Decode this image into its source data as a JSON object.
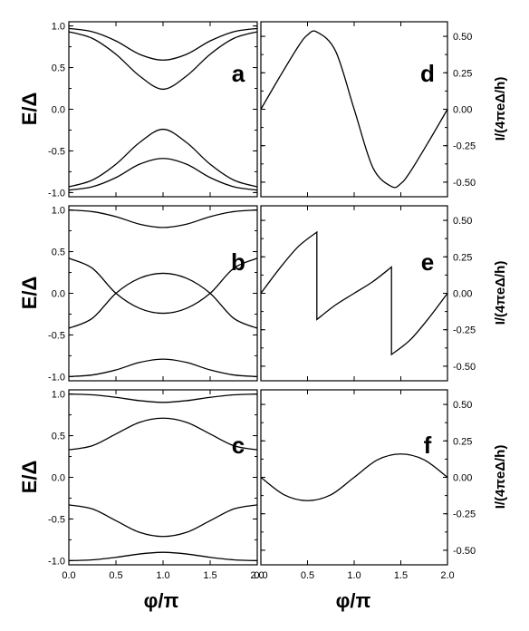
{
  "chart_data": [
    {
      "type": "line",
      "panel": "a",
      "ylabel": "E/Δ",
      "ylim": [
        -1.05,
        1.05
      ],
      "xlim": [
        0,
        2
      ],
      "series": [
        {
          "x": [
            0,
            0.25,
            0.5,
            0.75,
            1.0,
            1.25,
            1.5,
            1.75,
            2.0
          ],
          "values": [
            0.97,
            0.93,
            0.82,
            0.66,
            0.59,
            0.66,
            0.82,
            0.93,
            0.97
          ]
        },
        {
          "x": [
            0,
            0.25,
            0.5,
            0.75,
            1.0,
            1.25,
            1.5,
            1.75,
            2.0
          ],
          "values": [
            0.93,
            0.85,
            0.66,
            0.4,
            0.24,
            0.4,
            0.66,
            0.85,
            0.93
          ]
        },
        {
          "x": [
            0,
            0.25,
            0.5,
            0.75,
            1.0,
            1.25,
            1.5,
            1.75,
            2.0
          ],
          "values": [
            -0.93,
            -0.85,
            -0.66,
            -0.4,
            -0.24,
            -0.4,
            -0.66,
            -0.85,
            -0.93
          ]
        },
        {
          "x": [
            0,
            0.25,
            0.5,
            0.75,
            1.0,
            1.25,
            1.5,
            1.75,
            2.0
          ],
          "values": [
            -0.97,
            -0.93,
            -0.82,
            -0.66,
            -0.59,
            -0.66,
            -0.82,
            -0.93,
            -0.97
          ]
        }
      ]
    },
    {
      "type": "line",
      "panel": "b",
      "ylabel": "E/Δ",
      "ylim": [
        -1.05,
        1.05
      ],
      "xlim": [
        0,
        2
      ],
      "series": [
        {
          "x": [
            0,
            0.25,
            0.5,
            0.75,
            1.0,
            1.25,
            1.5,
            1.75,
            2.0
          ],
          "values": [
            1.0,
            0.98,
            0.92,
            0.83,
            0.79,
            0.83,
            0.92,
            0.98,
            1.0
          ]
        },
        {
          "x": [
            0,
            0.25,
            0.5,
            0.75,
            1.0,
            1.25,
            1.5,
            1.75,
            2.0
          ],
          "values": [
            0.42,
            0.3,
            0.0,
            -0.18,
            -0.24,
            -0.18,
            0.0,
            0.3,
            0.42
          ]
        },
        {
          "x": [
            0,
            0.25,
            0.5,
            0.75,
            1.0,
            1.25,
            1.5,
            1.75,
            2.0
          ],
          "values": [
            -0.42,
            -0.3,
            0.0,
            0.18,
            0.24,
            0.18,
            0.0,
            -0.3,
            -0.42
          ]
        },
        {
          "x": [
            0,
            0.25,
            0.5,
            0.75,
            1.0,
            1.25,
            1.5,
            1.75,
            2.0
          ],
          "values": [
            -1.0,
            -0.98,
            -0.92,
            -0.83,
            -0.79,
            -0.83,
            -0.92,
            -0.98,
            -1.0
          ]
        }
      ]
    },
    {
      "type": "line",
      "panel": "c",
      "ylabel": "E/Δ",
      "xlabel": "φ/π",
      "ylim": [
        -1.05,
        1.05
      ],
      "xlim": [
        0,
        2
      ],
      "series": [
        {
          "x": [
            0,
            0.25,
            0.5,
            0.75,
            1.0,
            1.25,
            1.5,
            1.75,
            2.0
          ],
          "values": [
            1.0,
            0.99,
            0.96,
            0.92,
            0.9,
            0.92,
            0.96,
            0.99,
            1.0
          ]
        },
        {
          "x": [
            0,
            0.25,
            0.5,
            0.75,
            1.0,
            1.25,
            1.5,
            1.75,
            2.0
          ],
          "values": [
            0.33,
            0.38,
            0.52,
            0.66,
            0.71,
            0.66,
            0.52,
            0.38,
            0.33
          ]
        },
        {
          "x": [
            0,
            0.25,
            0.5,
            0.75,
            1.0,
            1.25,
            1.5,
            1.75,
            2.0
          ],
          "values": [
            -0.33,
            -0.38,
            -0.52,
            -0.66,
            -0.71,
            -0.66,
            -0.52,
            -0.38,
            -0.33
          ]
        },
        {
          "x": [
            0,
            0.25,
            0.5,
            0.75,
            1.0,
            1.25,
            1.5,
            1.75,
            2.0
          ],
          "values": [
            -1.0,
            -0.99,
            -0.96,
            -0.92,
            -0.9,
            -0.92,
            -0.96,
            -0.99,
            -1.0
          ]
        }
      ]
    },
    {
      "type": "line",
      "panel": "d",
      "ylabel": "I/(4πeΔ/h)",
      "ylim": [
        -0.6,
        0.6
      ],
      "xlim": [
        0,
        2
      ],
      "series": [
        {
          "x": [
            0,
            0.2,
            0.4,
            0.5,
            0.6,
            0.8,
            1.0,
            1.2,
            1.4,
            1.5,
            1.6,
            1.8,
            2.0
          ],
          "values": [
            0.0,
            0.22,
            0.43,
            0.51,
            0.53,
            0.4,
            0.0,
            -0.4,
            -0.53,
            -0.51,
            -0.43,
            -0.22,
            0.0
          ]
        }
      ]
    },
    {
      "type": "line",
      "panel": "e",
      "ylabel": "I/(4πeΔ/h)",
      "ylim": [
        -0.6,
        0.6
      ],
      "xlim": [
        0,
        2
      ],
      "series": [
        {
          "x": [
            0,
            0.2,
            0.4,
            0.6,
            0.6,
            0.8,
            1.0,
            1.2,
            1.4,
            1.4,
            1.6,
            1.8,
            2.0
          ],
          "values": [
            0.0,
            0.17,
            0.32,
            0.42,
            -0.18,
            -0.08,
            0.0,
            0.08,
            0.18,
            -0.42,
            -0.32,
            -0.17,
            0.0
          ]
        }
      ]
    },
    {
      "type": "line",
      "panel": "f",
      "ylabel": "I/(4πeΔ/h)",
      "xlabel": "φ/π",
      "ylim": [
        -0.6,
        0.6
      ],
      "xlim": [
        0,
        2
      ],
      "series": [
        {
          "x": [
            0,
            0.25,
            0.5,
            0.75,
            1.0,
            1.25,
            1.5,
            1.75,
            2.0
          ],
          "values": [
            0.0,
            -0.12,
            -0.16,
            -0.12,
            0.0,
            0.12,
            0.16,
            0.12,
            0.0
          ]
        }
      ]
    }
  ],
  "axis_labels": {
    "energy": "E/Δ",
    "current": "I/(4πeΔ/h)",
    "phase": "φ/π"
  },
  "ticks": {
    "energy": [
      "1.0",
      "0.5",
      "0.0",
      "-0.5",
      "-1.0"
    ],
    "current": [
      "0.50",
      "0.25",
      "0.00",
      "-0.25",
      "-0.50"
    ],
    "phase_left": [
      "0.0",
      "0.5",
      "1.0",
      "1.5",
      "2.0"
    ],
    "phase_right": [
      "0.0",
      "0.5",
      "1.0",
      "1.5",
      "2.0"
    ]
  }
}
